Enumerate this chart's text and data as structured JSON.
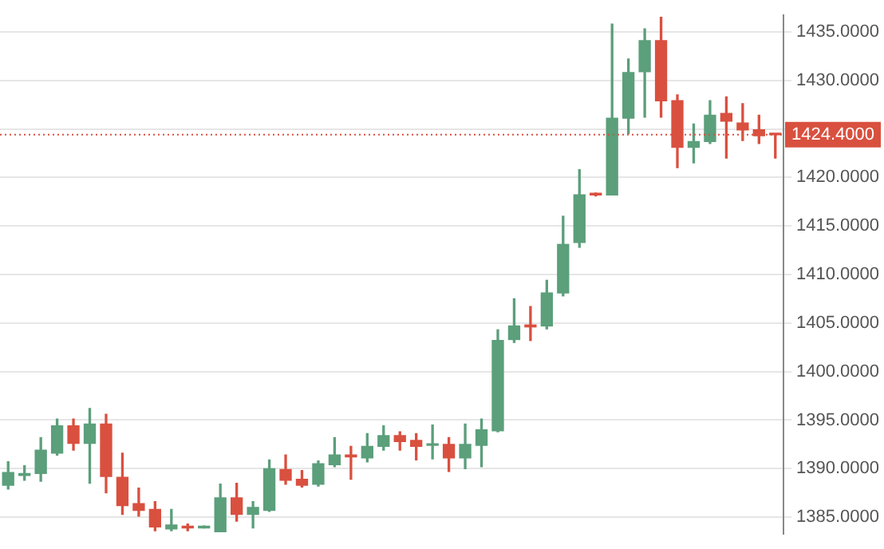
{
  "chart_data": {
    "type": "candlestick",
    "categories": [
      null,
      null,
      null,
      null,
      null,
      null,
      null,
      null,
      null,
      null,
      null,
      null,
      null,
      null,
      null,
      null,
      null,
      null,
      null,
      null,
      null,
      null,
      null,
      null,
      null,
      null,
      null,
      null,
      null,
      null,
      null,
      null,
      null,
      null,
      null,
      null,
      null,
      null,
      null,
      null,
      null,
      null,
      null,
      null,
      null,
      null,
      null,
      null
    ],
    "ohlc": [
      [
        1388.3,
        1390.7,
        1387.9,
        1389.6
      ],
      [
        1389.3,
        1390.3,
        1388.8,
        1389.5
      ],
      [
        1389.5,
        1393.2,
        1388.7,
        1391.9
      ],
      [
        1391.6,
        1395.1,
        1391.4,
        1394.4
      ],
      [
        1394.4,
        1395.1,
        1391.9,
        1392.6
      ],
      [
        1392.6,
        1396.2,
        1388.5,
        1394.6
      ],
      [
        1394.6,
        1395.6,
        1387.5,
        1389.2
      ],
      [
        1389.1,
        1391.6,
        1385.3,
        1386.2
      ],
      [
        1386.4,
        1388.0,
        1385.1,
        1385.7
      ],
      [
        1385.8,
        1386.6,
        1383.6,
        1384.0
      ],
      [
        1383.8,
        1385.8,
        1383.6,
        1384.2
      ],
      [
        1384.0,
        1384.3,
        1383.6,
        1383.9
      ],
      [
        1383.9,
        1384.1,
        1383.9,
        1384.0
      ],
      [
        1383.5,
        1388.4,
        1383.5,
        1387.0
      ],
      [
        1387.0,
        1388.5,
        1384.6,
        1385.3
      ],
      [
        1385.3,
        1386.6,
        1383.9,
        1386.0
      ],
      [
        1385.7,
        1390.9,
        1385.6,
        1390.0
      ],
      [
        1389.9,
        1391.4,
        1388.4,
        1388.8
      ],
      [
        1388.9,
        1389.8,
        1388.1,
        1388.3
      ],
      [
        1388.4,
        1390.8,
        1388.2,
        1390.5
      ],
      [
        1390.4,
        1393.2,
        1390.2,
        1391.4
      ],
      [
        1391.4,
        1392.3,
        1388.9,
        1391.2
      ],
      [
        1391.1,
        1393.6,
        1390.7,
        1392.3
      ],
      [
        1392.3,
        1394.4,
        1391.9,
        1393.4
      ],
      [
        1393.4,
        1393.8,
        1391.9,
        1392.8
      ],
      [
        1392.9,
        1393.6,
        1390.9,
        1392.3
      ],
      [
        1392.4,
        1394.5,
        1391.0,
        1392.5
      ],
      [
        1392.5,
        1393.2,
        1389.7,
        1391.1
      ],
      [
        1391.1,
        1394.6,
        1390.0,
        1392.5
      ],
      [
        1392.4,
        1395.1,
        1390.2,
        1394.0
      ],
      [
        1393.9,
        1404.3,
        1393.8,
        1403.2
      ],
      [
        1403.3,
        1407.5,
        1403.0,
        1404.7
      ],
      [
        1404.8,
        1406.7,
        1403.2,
        1404.6
      ],
      [
        1404.7,
        1409.4,
        1404.4,
        1408.1
      ],
      [
        1408.1,
        1416.0,
        1407.8,
        1413.1
      ],
      [
        1413.3,
        1420.8,
        1412.8,
        1418.2
      ],
      [
        1418.3,
        1418.4,
        1418.1,
        1418.2
      ],
      [
        1418.2,
        1435.8,
        1418.2,
        1426.1
      ],
      [
        1426.1,
        1432.2,
        1424.5,
        1430.8
      ],
      [
        1430.9,
        1435.3,
        1426.2,
        1434.1
      ],
      [
        1434.1,
        1436.5,
        1426.2,
        1427.9
      ],
      [
        1427.9,
        1428.5,
        1421.0,
        1423.1
      ],
      [
        1423.1,
        1425.5,
        1421.5,
        1423.7
      ],
      [
        1423.7,
        1427.9,
        1423.5,
        1426.4
      ],
      [
        1426.6,
        1428.3,
        1422.0,
        1425.8
      ],
      [
        1425.6,
        1427.6,
        1423.8,
        1424.9
      ],
      [
        1424.9,
        1426.4,
        1423.5,
        1424.3
      ],
      [
        1424.5,
        1424.5,
        1422.0,
        1424.4
      ]
    ],
    "colors": [
      "#5b9f7b",
      "#5b9f7b",
      "#5b9f7b",
      "#5b9f7b",
      "#d9503f",
      "#5b9f7b",
      "#d9503f",
      "#d9503f",
      "#d9503f",
      "#d9503f",
      "#5b9f7b",
      "#d9503f",
      "#5b9f7b",
      "#5b9f7b",
      "#d9503f",
      "#5b9f7b",
      "#5b9f7b",
      "#d9503f",
      "#d9503f",
      "#5b9f7b",
      "#5b9f7b",
      "#d9503f",
      "#5b9f7b",
      "#5b9f7b",
      "#d9503f",
      "#d9503f",
      "#5b9f7b",
      "#d9503f",
      "#5b9f7b",
      "#5b9f7b",
      "#5b9f7b",
      "#5b9f7b",
      "#d9503f",
      "#5b9f7b",
      "#5b9f7b",
      "#5b9f7b",
      "#d9503f",
      "#5b9f7b",
      "#5b9f7b",
      "#5b9f7b",
      "#d9503f",
      "#d9503f",
      "#5b9f7b",
      "#5b9f7b",
      "#d9503f",
      "#d9503f",
      "#d9503f",
      "#d9503f"
    ],
    "ylim": [
      1383.3,
      1436.7
    ],
    "yticks": [
      {
        "value": 1385,
        "label": "1385.0000"
      },
      {
        "value": 1390,
        "label": "1390.0000"
      },
      {
        "value": 1395,
        "label": "1395.0000"
      },
      {
        "value": 1400,
        "label": "1400.0000"
      },
      {
        "value": 1405,
        "label": "1405.0000"
      },
      {
        "value": 1410,
        "label": "1410.0000"
      },
      {
        "value": 1415,
        "label": "1415.0000"
      },
      {
        "value": 1420,
        "label": "1420.0000"
      },
      {
        "value": 1425,
        "label": null
      },
      {
        "value": 1430,
        "label": "1430.0000"
      },
      {
        "value": 1435,
        "label": "1435.0000"
      }
    ],
    "grid": "y",
    "ref_lines": [
      {
        "axis": "y",
        "value": 1424.4,
        "label": "1424.4000",
        "color": "#d9503f",
        "line_style": "dotted"
      }
    ]
  }
}
